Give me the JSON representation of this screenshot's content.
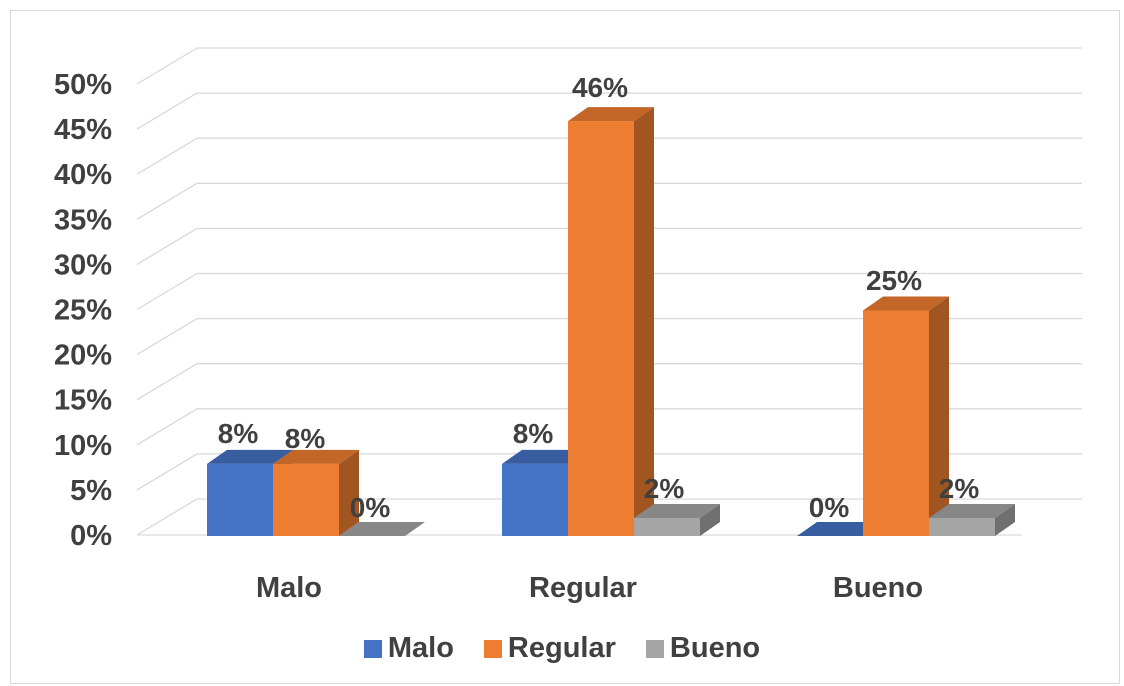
{
  "chart_data": {
    "type": "bar",
    "variant": "3d-clustered-column",
    "title": "",
    "xlabel": "",
    "ylabel": "",
    "categories": [
      "Malo",
      "Regular",
      "Bueno"
    ],
    "series": [
      {
        "name": "Malo",
        "values": [
          8,
          8,
          0
        ],
        "labels": [
          "8%",
          "8%",
          "0%"
        ],
        "color": "#4472c4"
      },
      {
        "name": "Regular",
        "values": [
          8,
          46,
          25
        ],
        "labels": [
          "8%",
          "46%",
          "25%"
        ],
        "color": "#ed7d31"
      },
      {
        "name": "Bueno",
        "values": [
          0,
          2,
          2
        ],
        "labels": [
          "0%",
          "2%",
          "2%"
        ],
        "color": "#a5a5a5"
      }
    ],
    "ylim": [
      0,
      50
    ],
    "yticks": [
      "0%",
      "5%",
      "10%",
      "15%",
      "20%",
      "25%",
      "30%",
      "35%",
      "40%",
      "45%",
      "50%"
    ],
    "grid": true,
    "legend_position": "bottom"
  }
}
